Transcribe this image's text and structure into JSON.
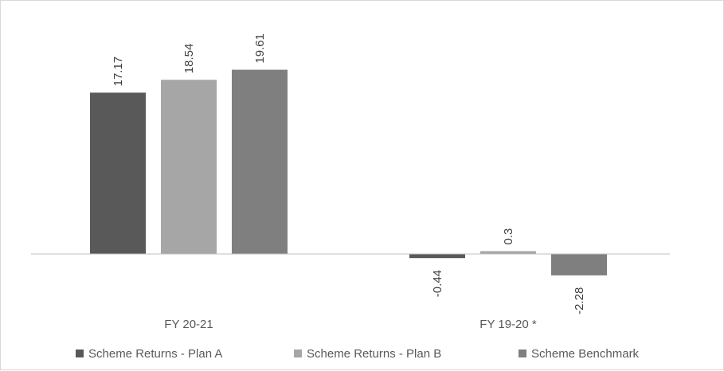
{
  "chart_data": {
    "type": "bar",
    "title": "",
    "xlabel": "",
    "ylabel": "",
    "categories": [
      "FY 20-21",
      "FY 19-20 *"
    ],
    "series": [
      {
        "name": "Scheme Returns - Plan A",
        "values": [
          17.17,
          -0.44
        ],
        "labels": [
          "17.17",
          "-0.44"
        ],
        "color": "#595959"
      },
      {
        "name": "Scheme Returns  - Plan B",
        "values": [
          18.54,
          0.3
        ],
        "labels": [
          "18.54",
          "0.3"
        ],
        "color": "#a6a6a6"
      },
      {
        "name": "Scheme Benchmark",
        "values": [
          19.61,
          -2.28
        ],
        "labels": [
          "19.61",
          "-2.28"
        ],
        "color": "#7f7f7f"
      }
    ],
    "grid": false,
    "legend_position": "bottom",
    "data_labels": true,
    "data_label_rotation": "vertical"
  }
}
